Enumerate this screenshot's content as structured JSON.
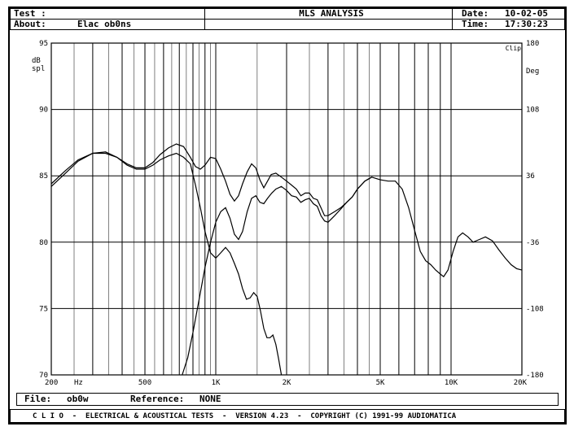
{
  "header": {
    "test_label": "Test :",
    "about_label": "About:",
    "about_value": "Elac ob0ns",
    "title": "MLS ANALYSIS",
    "date_label": "Date:",
    "date_value": "10-02-05",
    "time_label": "Time:",
    "time_value": "17:30:23"
  },
  "footer": {
    "file_label": "File:",
    "file_value": "ob0w",
    "reference_label": "Reference:",
    "reference_value": "NONE",
    "banner": "C L I O  -  ELECTRICAL & ACOUSTICAL TESTS  -  VERSION 4.23  -  COPYRIGHT (C) 1991-99 AUDIOMATICA"
  },
  "chart_data": {
    "type": "line",
    "xscale": "log",
    "xlim": [
      200,
      20000
    ],
    "ylim": [
      70,
      95
    ],
    "y2lim": [
      -180,
      180
    ],
    "grid": true,
    "ylabel": "dB\nspl",
    "y2label": "Deg",
    "clip_label": "Clip",
    "x_unit_label": "Hz",
    "x_tick_labels": [
      {
        "x": 200,
        "label": "200"
      },
      {
        "x": 500,
        "label": "500"
      },
      {
        "x": 1000,
        "label": "1K"
      },
      {
        "x": 2000,
        "label": "2K"
      },
      {
        "x": 5000,
        "label": "5K"
      },
      {
        "x": 10000,
        "label": "10K"
      },
      {
        "x": 20000,
        "label": "20K"
      }
    ],
    "x_major_grid": [
      300,
      400,
      500,
      600,
      700,
      800,
      900,
      1000,
      2000,
      3000,
      4000,
      5000,
      6000,
      7000,
      8000,
      9000,
      10000
    ],
    "x_minor_grid": [
      250,
      350,
      450,
      550,
      650,
      750,
      850,
      950,
      1500,
      2500,
      3500,
      4500
    ],
    "y_ticks": [
      70,
      75,
      80,
      85,
      90,
      95
    ],
    "y2_ticks": [
      -180,
      -108,
      -36,
      36,
      108,
      180
    ],
    "series": [
      {
        "points": [
          [
            200,
            84.4
          ],
          [
            230,
            85.4
          ],
          [
            260,
            86.2
          ],
          [
            300,
            86.7
          ],
          [
            340,
            86.8
          ],
          [
            380,
            86.4
          ],
          [
            420,
            85.9
          ],
          [
            460,
            85.6
          ],
          [
            500,
            85.6
          ],
          [
            540,
            86.0
          ],
          [
            580,
            86.6
          ],
          [
            630,
            87.1
          ],
          [
            680,
            87.4
          ],
          [
            730,
            87.2
          ],
          [
            780,
            86.4
          ],
          [
            820,
            85.7
          ],
          [
            860,
            85.5
          ],
          [
            900,
            85.8
          ],
          [
            950,
            86.4
          ],
          [
            1000,
            86.3
          ],
          [
            1050,
            85.5
          ],
          [
            1100,
            84.6
          ],
          [
            1150,
            83.6
          ],
          [
            1200,
            83.1
          ],
          [
            1250,
            83.5
          ],
          [
            1300,
            84.4
          ],
          [
            1360,
            85.3
          ],
          [
            1420,
            85.9
          ],
          [
            1480,
            85.6
          ],
          [
            1540,
            84.7
          ],
          [
            1600,
            84.1
          ],
          [
            1660,
            84.6
          ],
          [
            1720,
            85.1
          ],
          [
            1800,
            85.2
          ],
          [
            1900,
            84.9
          ],
          [
            2000,
            84.6
          ],
          [
            2100,
            84.3
          ],
          [
            2200,
            84.0
          ],
          [
            2300,
            83.5
          ],
          [
            2400,
            83.7
          ],
          [
            2500,
            83.7
          ],
          [
            2600,
            83.3
          ],
          [
            2700,
            83.2
          ],
          [
            2800,
            82.6
          ],
          [
            2900,
            82.0
          ],
          [
            3000,
            82.0
          ],
          [
            3200,
            82.3
          ],
          [
            3400,
            82.6
          ],
          [
            3600,
            83.0
          ],
          [
            3800,
            83.4
          ],
          [
            4000,
            84.0
          ],
          [
            4300,
            84.6
          ],
          [
            4600,
            84.9
          ],
          [
            5000,
            84.7
          ],
          [
            5400,
            84.6
          ],
          [
            5800,
            84.6
          ],
          [
            6200,
            84.0
          ],
          [
            6600,
            82.6
          ],
          [
            7000,
            80.9
          ],
          [
            7400,
            79.3
          ],
          [
            7800,
            78.6
          ],
          [
            8200,
            78.3
          ],
          [
            8600,
            77.9
          ],
          [
            9000,
            77.6
          ],
          [
            9300,
            77.4
          ],
          [
            9700,
            77.9
          ],
          [
            10200,
            79.3
          ],
          [
            10700,
            80.4
          ],
          [
            11200,
            80.7
          ],
          [
            11800,
            80.4
          ],
          [
            12400,
            80.0
          ],
          [
            13200,
            80.2
          ],
          [
            14000,
            80.4
          ],
          [
            15000,
            80.1
          ],
          [
            16000,
            79.4
          ],
          [
            17000,
            78.8
          ],
          [
            18000,
            78.3
          ],
          [
            19000,
            78.0
          ],
          [
            20000,
            77.9
          ]
        ]
      },
      {
        "points": [
          [
            200,
            84.2
          ],
          [
            230,
            85.2
          ],
          [
            260,
            86.1
          ],
          [
            300,
            86.7
          ],
          [
            340,
            86.7
          ],
          [
            380,
            86.4
          ],
          [
            420,
            85.8
          ],
          [
            460,
            85.5
          ],
          [
            500,
            85.5
          ],
          [
            540,
            85.8
          ],
          [
            580,
            86.2
          ],
          [
            630,
            86.5
          ],
          [
            680,
            86.7
          ],
          [
            730,
            86.4
          ],
          [
            780,
            85.9
          ],
          [
            820,
            84.3
          ],
          [
            860,
            82.6
          ],
          [
            900,
            80.8
          ],
          [
            950,
            79.2
          ],
          [
            1000,
            78.8
          ],
          [
            1050,
            79.2
          ],
          [
            1100,
            79.6
          ],
          [
            1150,
            79.2
          ],
          [
            1200,
            78.4
          ],
          [
            1250,
            77.6
          ],
          [
            1300,
            76.5
          ],
          [
            1350,
            75.7
          ],
          [
            1400,
            75.8
          ],
          [
            1450,
            76.2
          ],
          [
            1500,
            75.9
          ],
          [
            1550,
            74.8
          ],
          [
            1600,
            73.5
          ],
          [
            1650,
            72.8
          ],
          [
            1700,
            72.8
          ],
          [
            1750,
            73.0
          ],
          [
            1800,
            72.3
          ],
          [
            1850,
            71.2
          ],
          [
            1900,
            70.0
          ]
        ]
      },
      {
        "points": [
          [
            720,
            70.0
          ],
          [
            760,
            71.3
          ],
          [
            800,
            73.2
          ],
          [
            850,
            75.7
          ],
          [
            900,
            78.1
          ],
          [
            950,
            80.0
          ],
          [
            1000,
            81.5
          ],
          [
            1050,
            82.3
          ],
          [
            1100,
            82.6
          ],
          [
            1150,
            81.8
          ],
          [
            1200,
            80.6
          ],
          [
            1250,
            80.2
          ],
          [
            1300,
            80.8
          ],
          [
            1360,
            82.3
          ],
          [
            1420,
            83.3
          ],
          [
            1480,
            83.5
          ],
          [
            1540,
            83.0
          ],
          [
            1600,
            82.9
          ],
          [
            1660,
            83.3
          ],
          [
            1730,
            83.7
          ],
          [
            1800,
            84.0
          ],
          [
            1900,
            84.2
          ],
          [
            2000,
            83.9
          ],
          [
            2100,
            83.5
          ],
          [
            2200,
            83.4
          ],
          [
            2300,
            83.0
          ],
          [
            2400,
            83.2
          ],
          [
            2500,
            83.3
          ],
          [
            2600,
            82.9
          ],
          [
            2700,
            82.7
          ],
          [
            2800,
            82.0
          ],
          [
            2900,
            81.6
          ],
          [
            3000,
            81.5
          ],
          [
            3200,
            82.0
          ],
          [
            3400,
            82.5
          ],
          [
            3600,
            83.0
          ],
          [
            3800,
            83.4
          ],
          [
            4000,
            84.0
          ],
          [
            4300,
            84.6
          ],
          [
            4600,
            84.9
          ]
        ]
      }
    ]
  }
}
